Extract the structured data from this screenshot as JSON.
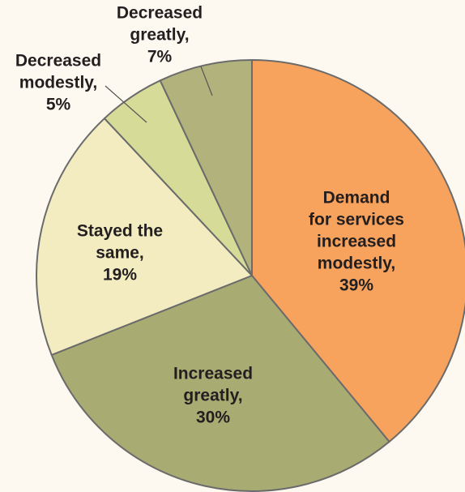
{
  "chart_data": {
    "type": "pie",
    "categories": [
      [
        "Demand",
        "for services",
        "increased",
        "modestly,"
      ],
      [
        "Increased",
        "greatly,"
      ],
      [
        "Stayed the",
        "same,"
      ],
      [
        "Decreased",
        "modestly,"
      ],
      [
        "Decreased",
        "greatly,"
      ]
    ],
    "values": [
      39,
      30,
      19,
      5,
      7
    ],
    "value_labels": [
      "39%",
      "30%",
      "19%",
      "5%",
      "7%"
    ],
    "colors": [
      "#f7a35e",
      "#a8ab72",
      "#f2ecc0",
      "#d6dc98",
      "#b1b27c"
    ]
  }
}
